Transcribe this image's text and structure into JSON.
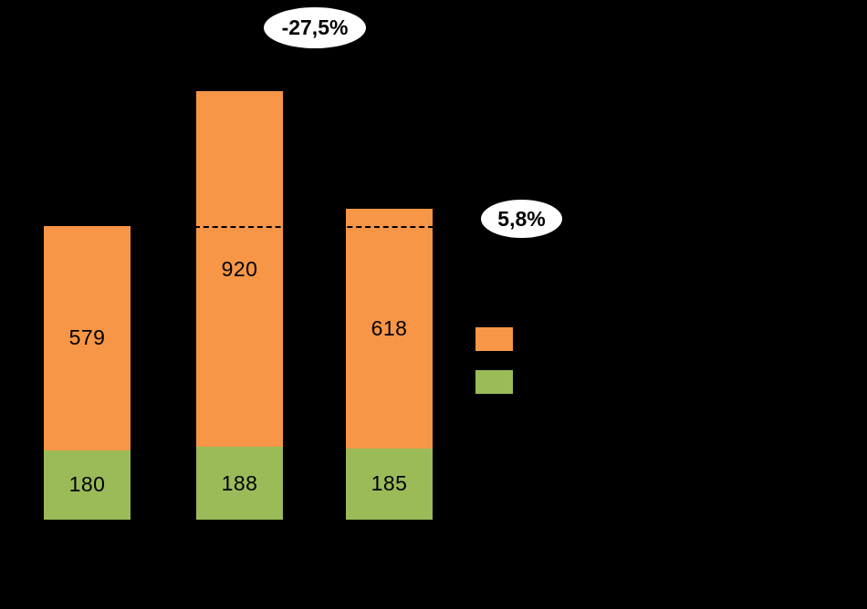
{
  "background_color": "#000000",
  "chart_data": {
    "type": "bar",
    "stacked": true,
    "orientation": "vertical",
    "categories": [
      "",
      "",
      ""
    ],
    "series": [
      {
        "name": "green-bottom-segment",
        "color": "#9bbb59",
        "values": [
          180,
          188,
          185
        ]
      },
      {
        "name": "orange-top-segment",
        "color": "#f79646",
        "values": [
          579,
          920,
          618
        ]
      }
    ],
    "totals": [
      759,
      1108,
      803
    ],
    "value_axis": {
      "min": 0,
      "max_visible": 1108,
      "gridlines": false
    },
    "reference_line": {
      "value": 759,
      "style": "dashed",
      "color": "#000000"
    },
    "annotations": [
      {
        "text": "-27,5%",
        "shape": "white-ellipse",
        "refers_to": "change from bar 2 total to bar 3 total"
      },
      {
        "text": "5,8%",
        "shape": "white-ellipse",
        "refers_to": "change from bar 1 total to bar 3 total"
      }
    ],
    "legend": {
      "position": "right",
      "items": [
        {
          "color": "#f79646",
          "label": ""
        },
        {
          "color": "#9bbb59",
          "label": ""
        }
      ]
    },
    "title": "",
    "xlabel": "",
    "ylabel": ""
  }
}
